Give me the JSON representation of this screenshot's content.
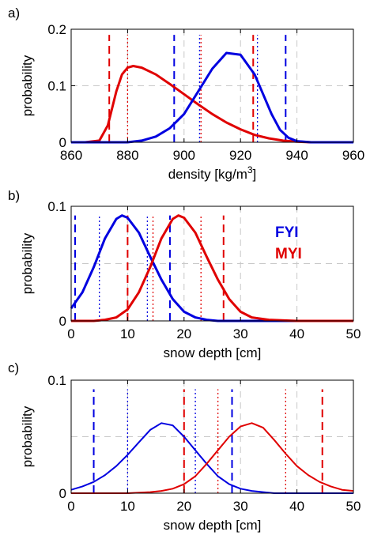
{
  "chart_data": [
    {
      "panel_label": "a)",
      "type": "line",
      "xlabel": "density [kg/m",
      "xlabel_sup": "3",
      "xlabel_tail": "]",
      "ylabel": "probability",
      "xlim": [
        860,
        960
      ],
      "ylim": [
        0,
        0.2
      ],
      "xticks": [
        860,
        880,
        900,
        920,
        940,
        960
      ],
      "xtick_labels": [
        "860",
        "880",
        "900",
        "920",
        "940",
        "960"
      ],
      "yticks": [
        0,
        0.1,
        0.2
      ],
      "ytick_labels": [
        "0",
        "0.1",
        "0.2"
      ],
      "grid": true,
      "grid_x": [
        880,
        900,
        920,
        940
      ],
      "grid_y": [
        0.1
      ],
      "series": [
        {
          "color": "#e00000",
          "x": [
            865,
            870,
            873,
            876,
            878,
            880,
            882,
            885,
            890,
            895,
            900,
            905,
            910,
            915,
            920,
            925,
            930,
            935,
            940,
            945,
            950,
            960
          ],
          "y": [
            0,
            0.003,
            0.03,
            0.09,
            0.12,
            0.132,
            0.135,
            0.132,
            0.12,
            0.103,
            0.085,
            0.067,
            0.05,
            0.035,
            0.023,
            0.013,
            0.007,
            0.003,
            0.001,
            0,
            0,
            0
          ]
        },
        {
          "color": "#0000e0",
          "x": [
            860,
            880,
            885,
            890,
            895,
            900,
            905,
            910,
            915,
            920,
            925,
            928,
            931,
            934,
            937,
            940,
            945,
            960
          ],
          "y": [
            0,
            0,
            0.003,
            0.01,
            0.025,
            0.05,
            0.09,
            0.13,
            0.158,
            0.155,
            0.12,
            0.085,
            0.05,
            0.022,
            0.008,
            0.002,
            0,
            0
          ]
        }
      ],
      "vlines": [
        {
          "x": 873.5,
          "color": "#e00000",
          "style": "dash",
          "y0": 0,
          "y1": 0.19
        },
        {
          "x": 880,
          "color": "#e00000",
          "style": "dot",
          "y0": 0,
          "y1": 0.19
        },
        {
          "x": 924.5,
          "color": "#e00000",
          "style": "dash",
          "y0": 0,
          "y1": 0.19
        },
        {
          "x": 896.5,
          "color": "#0000e0",
          "style": "dash",
          "y0": 0,
          "y1": 0.19
        },
        {
          "x": 926,
          "color": "#0000e0",
          "style": "dot",
          "y0": 0,
          "y1": 0.19
        },
        {
          "x": 936,
          "color": "#0000e0",
          "style": "dash",
          "y0": 0,
          "y1": 0.19
        },
        {
          "x": 905.5,
          "color": "#0000e0",
          "style": "dot",
          "y0": 0,
          "y1": 0.19
        },
        {
          "x": 906,
          "color": "#e00000",
          "style": "dot",
          "y0": 0,
          "y1": 0.19
        }
      ]
    },
    {
      "panel_label": "b)",
      "type": "line",
      "xlabel": "snow depth [cm]",
      "ylabel": "probability",
      "xlim": [
        0,
        50
      ],
      "ylim": [
        0,
        0.1
      ],
      "xticks": [
        0,
        10,
        20,
        30,
        40,
        50
      ],
      "xtick_labels": [
        "0",
        "10",
        "20",
        "30",
        "40",
        "50"
      ],
      "yticks": [
        0,
        0.1
      ],
      "ytick_labels": [
        "0",
        "0.1"
      ],
      "grid": true,
      "grid_x": [
        10,
        20,
        30,
        40
      ],
      "grid_y": [
        0.05
      ],
      "legend": [
        {
          "label": "FYI",
          "color": "#0000e0"
        },
        {
          "label": "MYI",
          "color": "#e00000"
        }
      ],
      "series": [
        {
          "color": "#0000e0",
          "x": [
            0,
            2,
            4,
            6,
            8,
            9,
            10,
            12,
            14,
            16,
            18,
            20,
            22,
            24,
            26,
            28,
            30,
            35,
            50
          ],
          "y": [
            0.011,
            0.025,
            0.047,
            0.072,
            0.089,
            0.092,
            0.09,
            0.077,
            0.056,
            0.036,
            0.019,
            0.008,
            0.003,
            0.001,
            0,
            0,
            0,
            0,
            0
          ]
        },
        {
          "color": "#e00000",
          "x": [
            0,
            4,
            6,
            8,
            10,
            12,
            14,
            16,
            18,
            19,
            20,
            22,
            24,
            26,
            28,
            30,
            32,
            35,
            40,
            50
          ],
          "y": [
            0,
            0,
            0.001,
            0.003,
            0.01,
            0.025,
            0.047,
            0.072,
            0.089,
            0.092,
            0.09,
            0.077,
            0.056,
            0.036,
            0.019,
            0.008,
            0.003,
            0.001,
            0,
            0
          ]
        }
      ],
      "vlines": [
        {
          "x": 0.7,
          "color": "#0000e0",
          "style": "dash",
          "y0": 0,
          "y1": 0.092
        },
        {
          "x": 5,
          "color": "#0000e0",
          "style": "dot",
          "y0": 0,
          "y1": 0.092
        },
        {
          "x": 13.5,
          "color": "#0000e0",
          "style": "dot",
          "y0": 0,
          "y1": 0.092
        },
        {
          "x": 17.5,
          "color": "#0000e0",
          "style": "dash",
          "y0": 0,
          "y1": 0.092
        },
        {
          "x": 10,
          "color": "#e00000",
          "style": "dash",
          "y0": 0,
          "y1": 0.092
        },
        {
          "x": 14.5,
          "color": "#e00000",
          "style": "dot",
          "y0": 0,
          "y1": 0.092
        },
        {
          "x": 23,
          "color": "#e00000",
          "style": "dot",
          "y0": 0,
          "y1": 0.092
        },
        {
          "x": 27,
          "color": "#e00000",
          "style": "dash",
          "y0": 0,
          "y1": 0.092
        }
      ]
    },
    {
      "panel_label": "c)",
      "type": "line",
      "xlabel": "snow depth [cm]",
      "ylabel": "probability",
      "xlim": [
        0,
        50
      ],
      "ylim": [
        0,
        0.1
      ],
      "xticks": [
        0,
        10,
        20,
        30,
        40,
        50
      ],
      "xtick_labels": [
        "0",
        "10",
        "20",
        "30",
        "40",
        "50"
      ],
      "yticks": [
        0,
        0.1
      ],
      "ytick_labels": [
        "0",
        "0.1"
      ],
      "grid": true,
      "grid_x": [
        10,
        20,
        30,
        40
      ],
      "grid_y": [
        0.05
      ],
      "series": [
        {
          "color": "#0000e0",
          "x": [
            0,
            2,
            4,
            6,
            8,
            10,
            12,
            14,
            16,
            18,
            20,
            22,
            24,
            26,
            28,
            30,
            32,
            34,
            36,
            40,
            50
          ],
          "y": [
            0.003,
            0.006,
            0.01,
            0.016,
            0.024,
            0.034,
            0.045,
            0.056,
            0.062,
            0.06,
            0.05,
            0.038,
            0.026,
            0.015,
            0.008,
            0.004,
            0.002,
            0.001,
            0,
            0,
            0
          ]
        },
        {
          "color": "#e00000",
          "x": [
            0,
            10,
            14,
            16,
            18,
            20,
            22,
            24,
            26,
            28,
            30,
            32,
            34,
            36,
            38,
            40,
            42,
            44,
            46,
            48,
            50
          ],
          "y": [
            0,
            0,
            0.001,
            0.002,
            0.004,
            0.008,
            0.015,
            0.026,
            0.038,
            0.05,
            0.059,
            0.062,
            0.058,
            0.047,
            0.035,
            0.024,
            0.016,
            0.01,
            0.006,
            0.003,
            0.002
          ]
        }
      ],
      "vlines": [
        {
          "x": 4,
          "color": "#0000e0",
          "style": "dash",
          "y0": 0,
          "y1": 0.092
        },
        {
          "x": 10,
          "color": "#0000e0",
          "style": "dot",
          "y0": 0,
          "y1": 0.092
        },
        {
          "x": 22,
          "color": "#0000e0",
          "style": "dot",
          "y0": 0,
          "y1": 0.092
        },
        {
          "x": 28.5,
          "color": "#0000e0",
          "style": "dash",
          "y0": 0,
          "y1": 0.092
        },
        {
          "x": 20,
          "color": "#e00000",
          "style": "dash",
          "y0": 0,
          "y1": 0.092
        },
        {
          "x": 26,
          "color": "#e00000",
          "style": "dot",
          "y0": 0,
          "y1": 0.092
        },
        {
          "x": 38,
          "color": "#e00000",
          "style": "dot",
          "y0": 0,
          "y1": 0.092
        },
        {
          "x": 44.5,
          "color": "#e00000",
          "style": "dash",
          "y0": 0,
          "y1": 0.092
        }
      ]
    }
  ]
}
